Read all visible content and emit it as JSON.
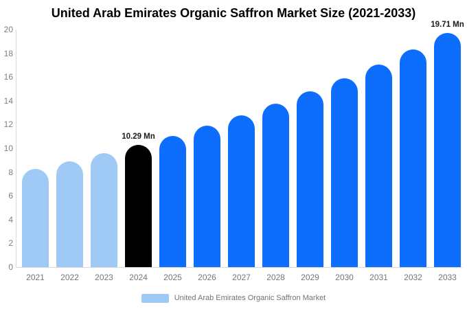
{
  "title": "United Arab Emirates Organic Saffron Market Size (2021-2033)",
  "chart_data": {
    "type": "bar",
    "title": "United Arab Emirates Organic Saffron Market Size (2021-2033)",
    "categories": [
      "2021",
      "2022",
      "2023",
      "2024",
      "2025",
      "2026",
      "2027",
      "2028",
      "2029",
      "2030",
      "2031",
      "2032",
      "2033"
    ],
    "values": [
      8.29,
      8.91,
      9.57,
      10.29,
      11.06,
      11.89,
      12.78,
      13.74,
      14.77,
      15.87,
      17.06,
      18.34,
      19.71
    ],
    "bar_labels": [
      "",
      "",
      "",
      "10.29 Mn",
      "",
      "",
      "",
      "",
      "",
      "",
      "",
      "",
      "19.71 Mn"
    ],
    "bar_colors": [
      "#9fcaf6",
      "#9fcaf6",
      "#9fcaf6",
      "#000000",
      "#0d6efd",
      "#0d6efd",
      "#0d6efd",
      "#0d6efd",
      "#0d6efd",
      "#0d6efd",
      "#0d6efd",
      "#0d6efd",
      "#0d6efd"
    ],
    "xlabel": "",
    "ylabel": "",
    "ylim": [
      0,
      20
    ],
    "yticks": [
      0,
      2,
      4,
      6,
      8,
      10,
      12,
      14,
      16,
      18,
      20
    ],
    "grid": false,
    "legend_position": "bottom",
    "legend": {
      "entries": [
        {
          "label": "United Arab Emirates Organic Saffron Market",
          "color": "#9fcaf6"
        }
      ]
    },
    "unit_suffix": "Mn"
  },
  "colors": {
    "background": "#ffffff",
    "title_text": "#000000",
    "axis_line": "#d9d9d9",
    "tick_label": "#7f7f7f",
    "x_label": "#757575",
    "value_label": "#1a1a1a",
    "legend_text": "#737373",
    "historical_bar": "#9fcaf6",
    "highlight_bar": "#000000",
    "forecast_bar": "#0d6efd"
  }
}
